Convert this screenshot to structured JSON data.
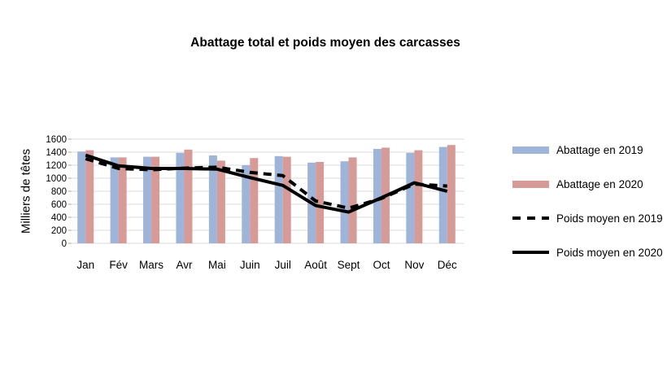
{
  "title": "Abattage total et poids moyen des carcasses",
  "y_axis_label": "Milliers de têtes",
  "legend": {
    "items": [
      {
        "label": "Abattage en 2019",
        "swatch": "bar",
        "color": "#9EB4D8"
      },
      {
        "label": "Abattage en 2020",
        "swatch": "bar",
        "color": "#D69A97"
      },
      {
        "label": "Poids moyen en 2019",
        "swatch": "dashed-line",
        "color": "#000000"
      },
      {
        "label": "Poids moyen en 2020",
        "swatch": "solid-line",
        "color": "#000000"
      }
    ]
  },
  "colors": {
    "bar_2019": "#9EB4D8",
    "bar_2020": "#D69A97",
    "line": "#000000",
    "grid": "#E2E2E2",
    "tick": "#BDBDBD",
    "text": "#000000"
  },
  "chart_data": {
    "type": "bar",
    "subtype": "bar-line-combo",
    "title": "Abattage total et poids moyen des carcasses",
    "xlabel": "",
    "ylabel": "Milliers de têtes",
    "categories": [
      "Jan",
      "Fév",
      "Mars",
      "Avr",
      "Mai",
      "Juin",
      "Juil",
      "Août",
      "Sept",
      "Oct",
      "Nov",
      "Déc"
    ],
    "ylim": [
      0,
      1600
    ],
    "ytick_step": 200,
    "grid": true,
    "legend_position": "right",
    "series": [
      {
        "name": "Abattage en 2019",
        "type": "bar",
        "color": "#9EB4D8",
        "values": [
          1410,
          1320,
          1330,
          1390,
          1350,
          1200,
          1340,
          1240,
          1260,
          1450,
          1390,
          1480
        ]
      },
      {
        "name": "Abattage en 2020",
        "type": "bar",
        "color": "#D69A97",
        "values": [
          1430,
          1320,
          1330,
          1440,
          1270,
          1310,
          1330,
          1250,
          1320,
          1470,
          1430,
          1510
        ]
      },
      {
        "name": "Poids moyen en 2019",
        "type": "line",
        "style": "dashed",
        "color": "#000000",
        "values": [
          1300,
          1150,
          1130,
          1155,
          1170,
          1090,
          1040,
          650,
          540,
          690,
          910,
          880
        ]
      },
      {
        "name": "Poids moyen en 2020",
        "type": "line",
        "style": "solid",
        "color": "#000000",
        "values": [
          1355,
          1190,
          1150,
          1150,
          1140,
          1010,
          890,
          580,
          480,
          700,
          930,
          800
        ]
      }
    ]
  }
}
